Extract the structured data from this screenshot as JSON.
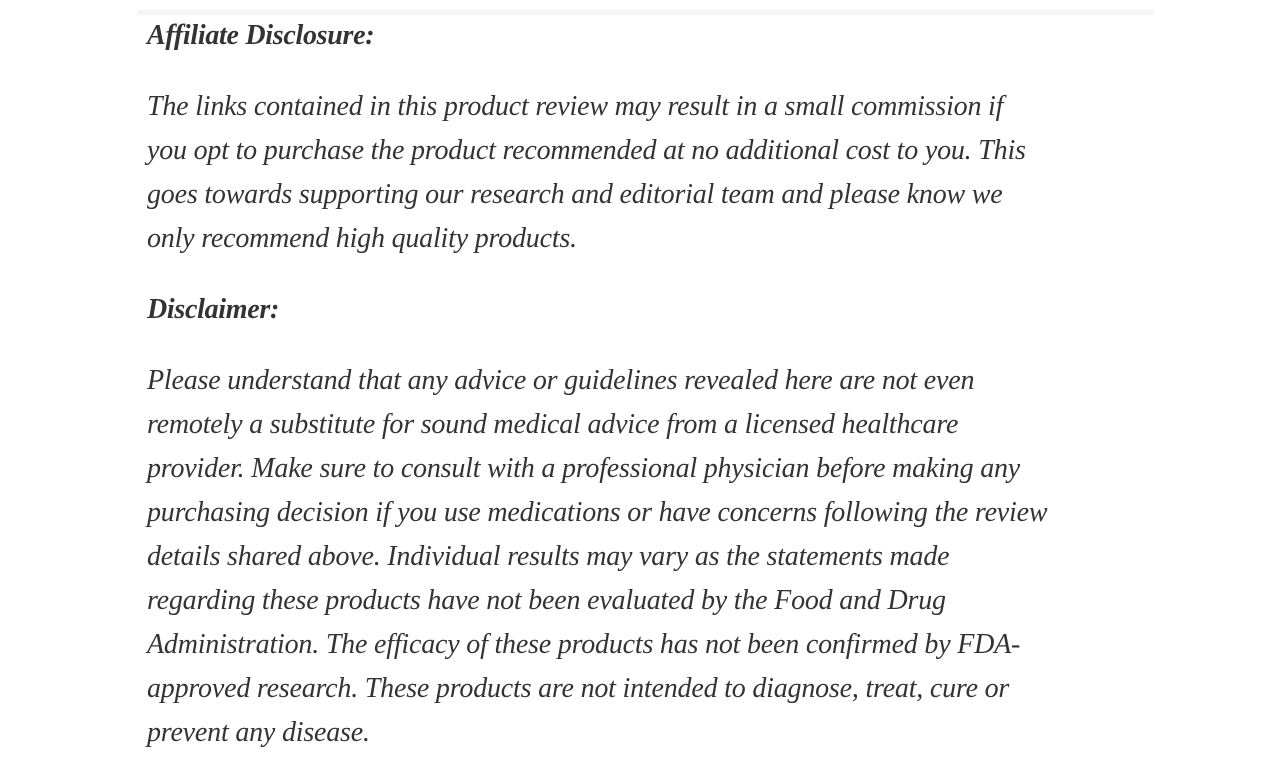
{
  "page": {
    "background_color": "#ffffff",
    "text_color": "#333333",
    "divider_color": "#f5f5f5"
  },
  "article": {
    "sections": [
      {
        "heading": "Affiliate Disclosure:",
        "body": "The links contained in this product review may result in a small commission if\nyou opt to purchase the product recommended at no additional cost to you. This\ngoes towards supporting our research and editorial team and please know we\nonly recommend high quality products."
      },
      {
        "heading": "Disclaimer:",
        "body": "Please understand that any advice or guidelines revealed here are not even\nremotely a substitute for sound medical advice from a licensed healthcare\nprovider. Make sure to consult with a professional physician before making any\npurchasing decision if you use medications or have concerns following the review\ndetails shared above. Individual results may vary as the statements made\nregarding these products have not been evaluated by the Food and Drug\nAdministration. The efficacy of these products has not been confirmed by FDA-\napproved research. These products are not intended to diagnose, treat, cure or\nprevent any disease."
      }
    ]
  }
}
